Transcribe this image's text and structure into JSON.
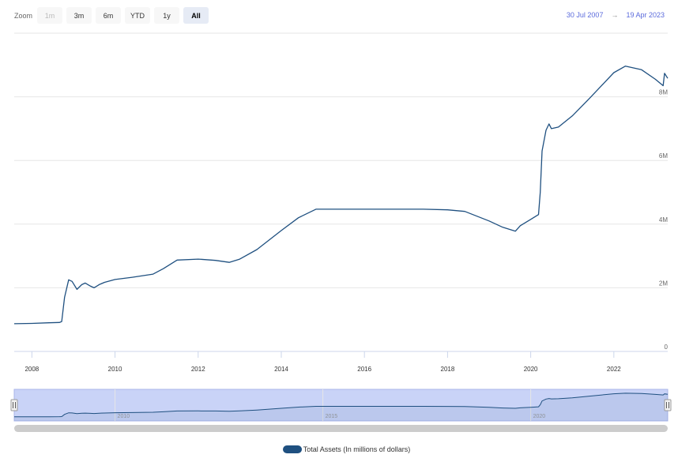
{
  "rangeSelector": {
    "label": "Zoom",
    "buttons": [
      {
        "label": "1m",
        "state": "disabled"
      },
      {
        "label": "3m",
        "state": "normal"
      },
      {
        "label": "6m",
        "state": "normal"
      },
      {
        "label": "YTD",
        "state": "normal"
      },
      {
        "label": "1y",
        "state": "normal"
      },
      {
        "label": "All",
        "state": "active"
      }
    ],
    "from": "30 Jul 2007",
    "arrow": "→",
    "to": "19 Apr 2023"
  },
  "colors": {
    "line": "#1f5080",
    "navigatorFill": "#c9d3f7",
    "grid": "#e6e6e6"
  },
  "chart_data": {
    "type": "line",
    "title": "",
    "xlabel": "",
    "ylabel": "",
    "xlim": [
      "2007-07-30",
      "2023-04-19"
    ],
    "ylim": [
      0,
      10000000
    ],
    "x_ticks": [
      "2008",
      "2010",
      "2012",
      "2014",
      "2016",
      "2018",
      "2020",
      "2022"
    ],
    "y_ticks": [
      "0",
      "2M",
      "4M",
      "6M",
      "8M"
    ],
    "navigator_ticks": [
      "2010",
      "2015",
      "2020"
    ],
    "grid": true,
    "legend": "bottom-center",
    "series": [
      {
        "name": "Total Assets (In millions of dollars)",
        "x": [
          "2007-07-30",
          "2008-01-01",
          "2008-06-01",
          "2008-09-01",
          "2008-09-20",
          "2008-10-15",
          "2008-11-20",
          "2008-12-20",
          "2009-02-01",
          "2009-03-15",
          "2009-04-15",
          "2009-06-01",
          "2009-07-01",
          "2009-08-15",
          "2009-10-01",
          "2010-01-01",
          "2010-06-01",
          "2010-12-01",
          "2011-03-01",
          "2011-06-30",
          "2012-01-01",
          "2012-06-01",
          "2012-10-01",
          "2013-01-01",
          "2013-06-01",
          "2014-01-01",
          "2014-06-01",
          "2014-11-01",
          "2015-06-01",
          "2016-06-01",
          "2017-06-01",
          "2018-01-01",
          "2018-06-01",
          "2019-01-01",
          "2019-05-01",
          "2019-08-20",
          "2019-10-01",
          "2020-01-01",
          "2020-03-10",
          "2020-03-25",
          "2020-04-10",
          "2020-05-15",
          "2020-06-10",
          "2020-07-01",
          "2020-09-01",
          "2021-01-01",
          "2021-06-01",
          "2022-01-01",
          "2022-04-13",
          "2022-09-01",
          "2023-01-01",
          "2023-03-10",
          "2023-03-22",
          "2023-04-19"
        ],
        "y": [
          870000,
          880000,
          900000,
          910000,
          940000,
          1700000,
          2250000,
          2200000,
          1950000,
          2100000,
          2150000,
          2050000,
          2000000,
          2100000,
          2170000,
          2260000,
          2330000,
          2430000,
          2600000,
          2870000,
          2900000,
          2860000,
          2800000,
          2900000,
          3200000,
          3800000,
          4200000,
          4470000,
          4470000,
          4470000,
          4470000,
          4450000,
          4400000,
          4100000,
          3900000,
          3780000,
          3950000,
          4150000,
          4300000,
          5000000,
          6300000,
          6950000,
          7150000,
          7000000,
          7050000,
          7400000,
          7950000,
          8760000,
          8965000,
          8850000,
          8550000,
          8350000,
          8740000,
          8580000
        ]
      }
    ]
  }
}
